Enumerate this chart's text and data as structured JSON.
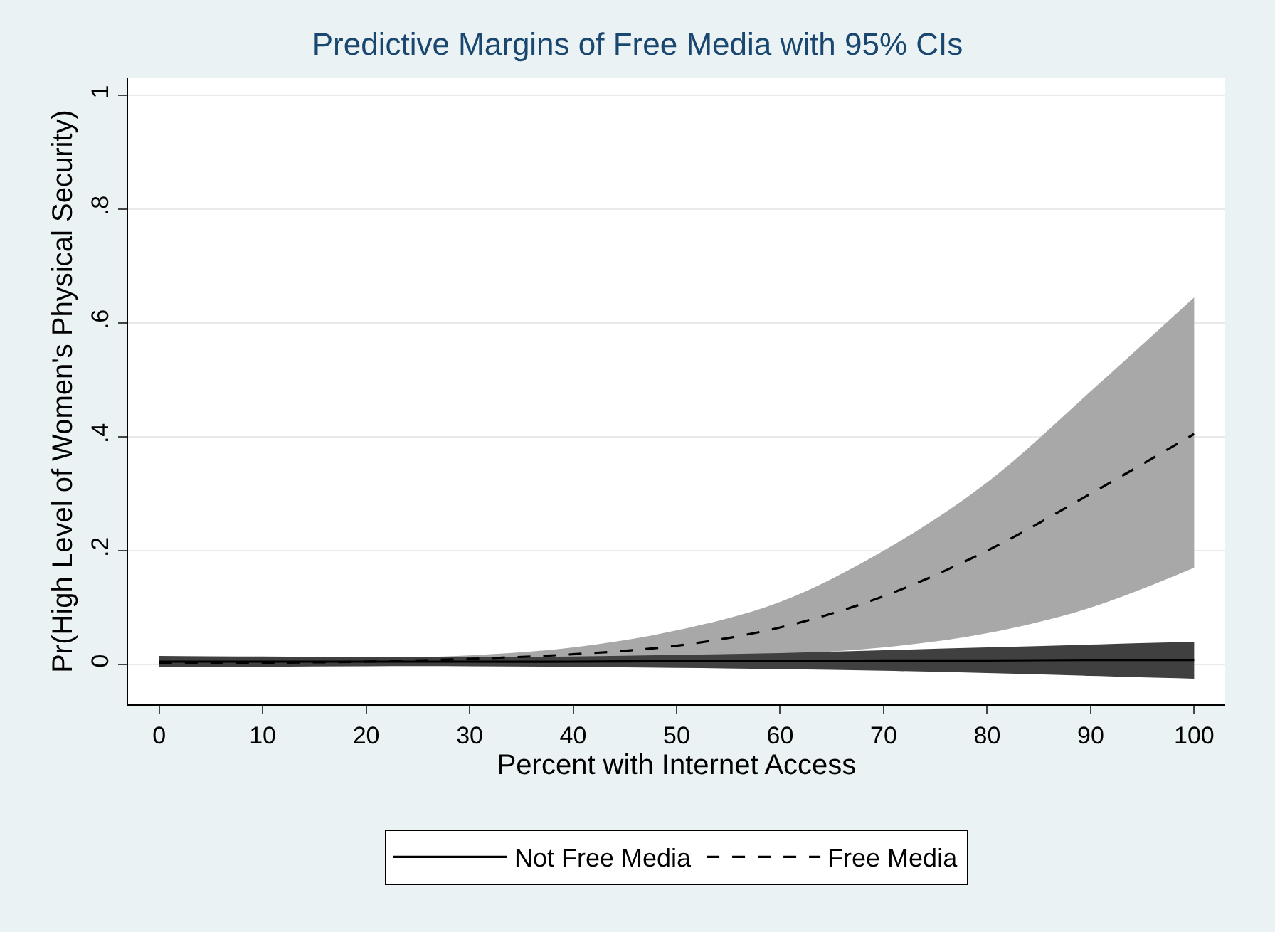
{
  "chart_data": {
    "type": "line",
    "title": "Predictive Margins of Free Media with 95% CIs",
    "xlabel": "Percent with Internet Access",
    "ylabel": "Pr(High Level of Women's Physical Security)",
    "x": [
      0,
      10,
      20,
      30,
      40,
      50,
      60,
      70,
      80,
      90,
      100
    ],
    "series": [
      {
        "name": "Not Free Media",
        "color": "#000000",
        "line_style": "solid",
        "values": [
          0.005,
          0.005,
          0.005,
          0.005,
          0.005,
          0.006,
          0.006,
          0.007,
          0.007,
          0.008,
          0.008
        ],
        "lower": [
          -0.005,
          -0.004,
          -0.003,
          -0.003,
          -0.004,
          -0.006,
          -0.008,
          -0.011,
          -0.015,
          -0.02,
          -0.025
        ],
        "upper": [
          0.015,
          0.014,
          0.013,
          0.013,
          0.014,
          0.017,
          0.02,
          0.025,
          0.03,
          0.035,
          0.04
        ]
      },
      {
        "name": "Free Media",
        "color": "#000000",
        "line_style": "dashed",
        "values": [
          0.002,
          0.003,
          0.005,
          0.01,
          0.018,
          0.033,
          0.065,
          0.12,
          0.2,
          0.3,
          0.405
        ],
        "lower": [
          -0.004,
          -0.002,
          0.0,
          0.004,
          0.008,
          0.012,
          0.018,
          0.03,
          0.055,
          0.1,
          0.17
        ],
        "upper": [
          0.008,
          0.009,
          0.011,
          0.016,
          0.03,
          0.06,
          0.11,
          0.2,
          0.32,
          0.48,
          0.645
        ]
      }
    ],
    "xlim": [
      -3,
      103
    ],
    "xticks": [
      0,
      10,
      20,
      30,
      40,
      50,
      60,
      70,
      80,
      90,
      100
    ],
    "ylim": [
      -0.07,
      1.03
    ],
    "yticks": [
      {
        "value": 0,
        "label": "0"
      },
      {
        "value": 0.2,
        "label": ".2"
      },
      {
        "value": 0.4,
        "label": ".4"
      },
      {
        "value": 0.6,
        "label": ".6"
      },
      {
        "value": 0.8,
        "label": ".8"
      },
      {
        "value": 1,
        "label": "1"
      }
    ],
    "grid": "y",
    "legend": "bottom",
    "marker": "none"
  }
}
